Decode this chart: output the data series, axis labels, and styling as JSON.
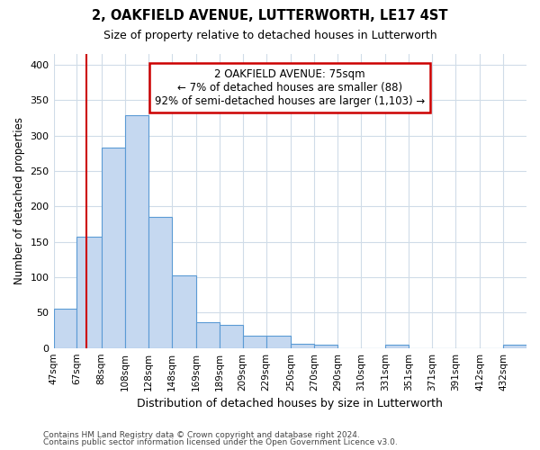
{
  "title": "2, OAKFIELD AVENUE, LUTTERWORTH, LE17 4ST",
  "subtitle": "Size of property relative to detached houses in Lutterworth",
  "xlabel": "Distribution of detached houses by size in Lutterworth",
  "ylabel": "Number of detached properties",
  "footer_line1": "Contains HM Land Registry data © Crown copyright and database right 2024.",
  "footer_line2": "Contains public sector information licensed under the Open Government Licence v3.0.",
  "bar_edges": [
    47,
    67,
    88,
    108,
    128,
    148,
    169,
    189,
    209,
    229,
    250,
    270,
    290,
    310,
    331,
    351,
    371,
    391,
    412,
    432,
    452
  ],
  "bar_heights": [
    55,
    157,
    283,
    328,
    185,
    103,
    37,
    33,
    18,
    17,
    6,
    5,
    0,
    0,
    5,
    0,
    0,
    0,
    0,
    5
  ],
  "bar_color": "#c5d8f0",
  "bar_edge_color": "#5b9bd5",
  "property_line_x": 75,
  "property_line_color": "#cc0000",
  "annotation_title": "2 OAKFIELD AVENUE: 75sqm",
  "annotation_line1": "← 7% of detached houses are smaller (88)",
  "annotation_line2": "92% of semi-detached houses are larger (1,103) →",
  "annotation_box_color": "#cc0000",
  "ylim": [
    0,
    415
  ],
  "yticks": [
    0,
    50,
    100,
    150,
    200,
    250,
    300,
    350,
    400
  ],
  "bg_color": "#ffffff",
  "plot_bg_color": "#ffffff",
  "grid_color": "#d0dce8"
}
